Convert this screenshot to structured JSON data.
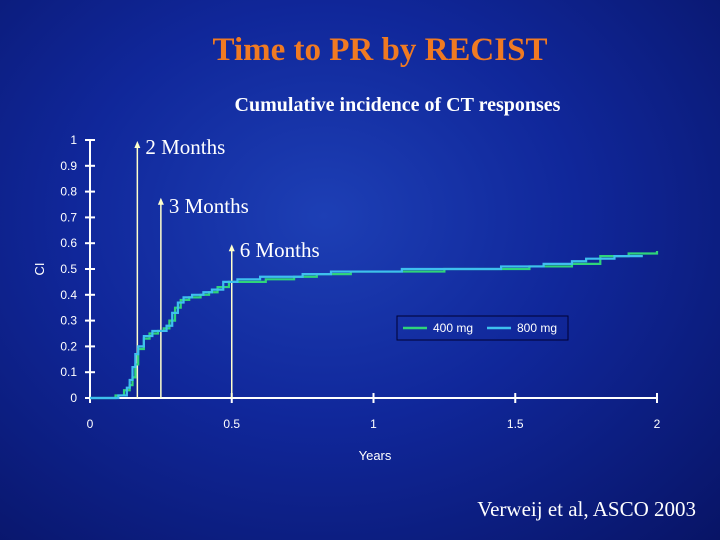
{
  "slide": {
    "title": "Time to PR by RECIST",
    "citation": "Verweij et al, ASCO 2003"
  },
  "colors": {
    "background": "#10279a",
    "title": "#f07a22",
    "axis": "#ffffff",
    "series_400": "#2fd47a",
    "series_800": "#3ec0ee",
    "annotation_line": "#ffffcc"
  },
  "chart_data": {
    "type": "line",
    "title": "Cumulative incidence of CT responses",
    "xlabel": "Years",
    "ylabel": "CI",
    "xlim": [
      0,
      2
    ],
    "ylim": [
      0,
      1
    ],
    "x_ticks": [
      0,
      0.5,
      1,
      1.5,
      2
    ],
    "x_tick_labels": [
      "0",
      "0.5",
      "1",
      "1.5",
      "2"
    ],
    "y_ticks": [
      0,
      0.1,
      0.2,
      0.3,
      0.4,
      0.5,
      0.6,
      0.7,
      0.8,
      0.9,
      1
    ],
    "y_tick_labels": [
      "0",
      "0.1",
      "0.2",
      "0.3",
      "0.4",
      "0.5",
      "0.6",
      "0.7",
      "0.8",
      "0.9",
      "1"
    ],
    "grid": false,
    "legend_position": "right",
    "annotations": [
      {
        "text": "2 Months",
        "x": 0.167,
        "y": 1.0
      },
      {
        "text": "3 Months",
        "x": 0.25,
        "y": 0.78
      },
      {
        "text": "6 Months",
        "x": 0.5,
        "y": 0.6
      }
    ],
    "series": [
      {
        "name": "400 mg",
        "x": [
          0,
          0.06,
          0.09,
          0.12,
          0.14,
          0.15,
          0.16,
          0.17,
          0.19,
          0.21,
          0.24,
          0.26,
          0.28,
          0.3,
          0.32,
          0.35,
          0.39,
          0.42,
          0.45,
          0.49,
          0.55,
          0.62,
          0.72,
          0.8,
          0.92,
          1.05,
          1.25,
          1.4,
          1.55,
          1.7,
          1.8,
          1.9,
          2.0
        ],
        "y": [
          0,
          0.0,
          0.01,
          0.03,
          0.05,
          0.08,
          0.13,
          0.19,
          0.23,
          0.25,
          0.26,
          0.27,
          0.3,
          0.35,
          0.38,
          0.39,
          0.4,
          0.41,
          0.43,
          0.45,
          0.45,
          0.46,
          0.47,
          0.48,
          0.49,
          0.49,
          0.5,
          0.5,
          0.51,
          0.52,
          0.55,
          0.56,
          0.57
        ]
      },
      {
        "name": "800 mg",
        "x": [
          0,
          0.06,
          0.1,
          0.13,
          0.14,
          0.15,
          0.16,
          0.17,
          0.19,
          0.22,
          0.25,
          0.27,
          0.29,
          0.31,
          0.33,
          0.36,
          0.4,
          0.43,
          0.47,
          0.52,
          0.6,
          0.68,
          0.75,
          0.85,
          0.95,
          1.1,
          1.3,
          1.45,
          1.6,
          1.7,
          1.75,
          1.85,
          1.95
        ],
        "y": [
          0,
          0.0,
          0.01,
          0.04,
          0.07,
          0.12,
          0.17,
          0.2,
          0.24,
          0.26,
          0.26,
          0.28,
          0.33,
          0.37,
          0.39,
          0.4,
          0.41,
          0.42,
          0.45,
          0.46,
          0.47,
          0.47,
          0.48,
          0.49,
          0.49,
          0.5,
          0.5,
          0.51,
          0.52,
          0.53,
          0.54,
          0.55,
          0.55
        ]
      }
    ]
  }
}
